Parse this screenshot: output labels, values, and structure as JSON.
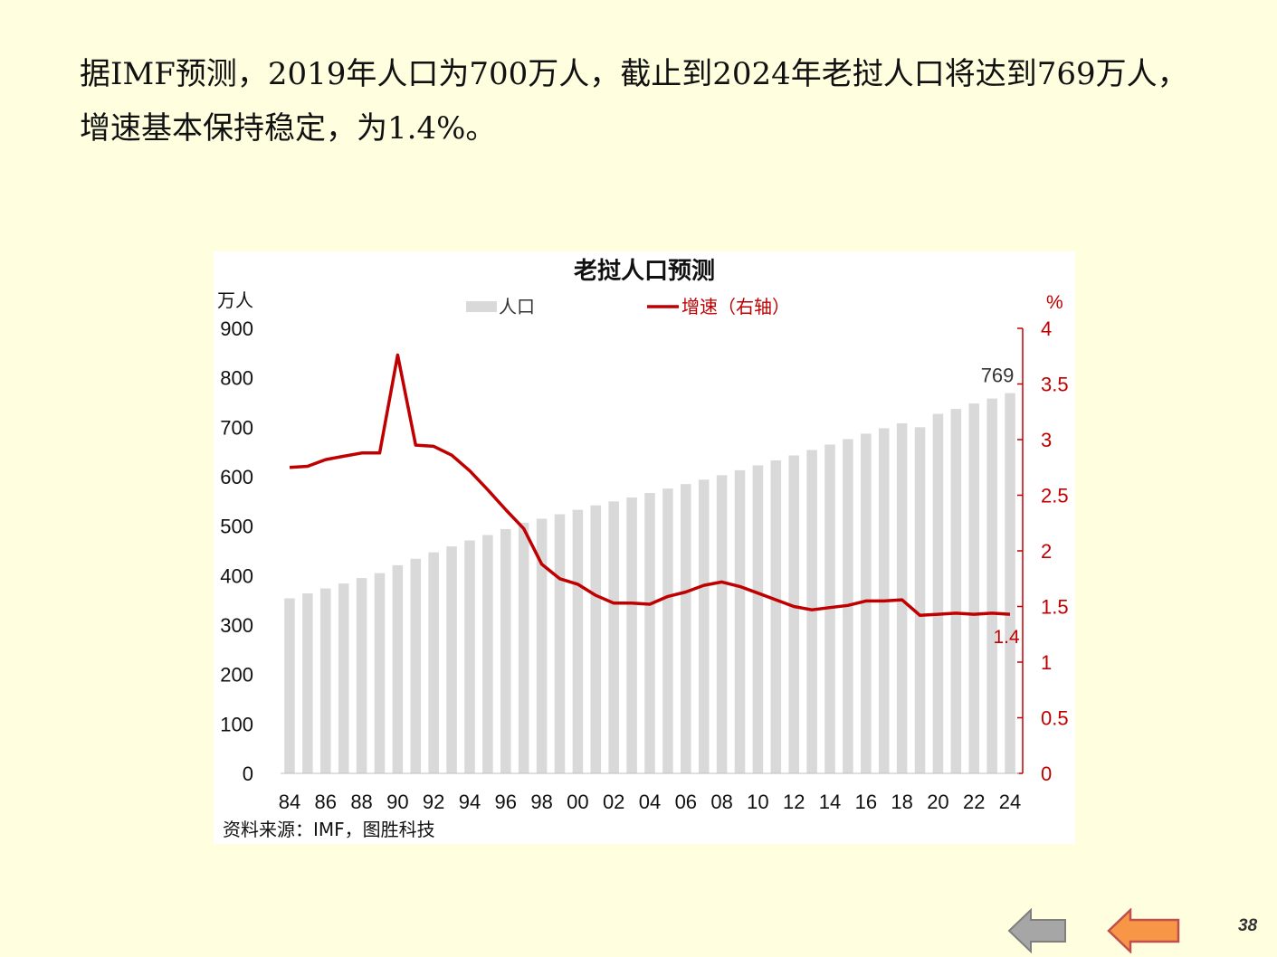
{
  "intro": {
    "line1": "据IMF预测，2019年人口为700万人，截止到2024年老挝人口将达到769万人，",
    "line2": "增速基本保持稳定，为1.4%。"
  },
  "chart_data": {
    "type": "bar+line",
    "title": "老挝人口预测",
    "left_unit": "万人",
    "right_unit": "%",
    "legend": [
      "人口",
      "增速（右轴）"
    ],
    "source": "资料来源：IMF，图胜科技",
    "years": [
      1984,
      1985,
      1986,
      1987,
      1988,
      1989,
      1990,
      1991,
      1992,
      1993,
      1994,
      1995,
      1996,
      1997,
      1998,
      1999,
      2000,
      2001,
      2002,
      2003,
      2004,
      2005,
      2006,
      2007,
      2008,
      2009,
      2010,
      2011,
      2012,
      2013,
      2014,
      2015,
      2016,
      2017,
      2018,
      2019,
      2020,
      2021,
      2022,
      2023,
      2024
    ],
    "x_tick_labels": [
      "84",
      "86",
      "88",
      "90",
      "92",
      "94",
      "96",
      "98",
      "00",
      "02",
      "04",
      "06",
      "08",
      "10",
      "12",
      "14",
      "16",
      "18",
      "20",
      "22",
      "24"
    ],
    "series": [
      {
        "name": "人口",
        "type": "bar",
        "axis": "left",
        "values": [
          354,
          364,
          374,
          384,
          395,
          405,
          421,
          434,
          447,
          459,
          471,
          482,
          494,
          507,
          515,
          524,
          533,
          542,
          550,
          558,
          567,
          576,
          585,
          594,
          603,
          613,
          623,
          633,
          643,
          654,
          665,
          676,
          687,
          698,
          708,
          700,
          727,
          737,
          748,
          758,
          769
        ]
      },
      {
        "name": "增速（右轴）",
        "type": "line",
        "axis": "right",
        "values": [
          2.75,
          2.76,
          2.82,
          2.85,
          2.88,
          2.88,
          3.76,
          2.95,
          2.94,
          2.86,
          2.72,
          2.55,
          2.37,
          2.2,
          1.88,
          1.75,
          1.7,
          1.6,
          1.53,
          1.53,
          1.52,
          1.59,
          1.63,
          1.69,
          1.72,
          1.68,
          1.62,
          1.56,
          1.5,
          1.47,
          1.49,
          1.51,
          1.55,
          1.55,
          1.56,
          1.42,
          1.43,
          1.44,
          1.43,
          1.44,
          1.43
        ]
      }
    ],
    "left_axis": {
      "min": 0,
      "max": 900,
      "ticks": [
        0,
        100,
        200,
        300,
        400,
        500,
        600,
        700,
        800,
        900
      ]
    },
    "right_axis": {
      "min": 0,
      "max": 4,
      "ticks": [
        "0",
        "0.5",
        "1",
        "1.5",
        "2",
        "2.5",
        "3",
        "3.5",
        "4"
      ]
    },
    "annotations": {
      "last_bar": "769",
      "last_rate": "1.4"
    },
    "colors": {
      "bar": "#D9D9D9",
      "line": "#C00000",
      "axis_right": "#C00000"
    }
  },
  "page_number": "38"
}
